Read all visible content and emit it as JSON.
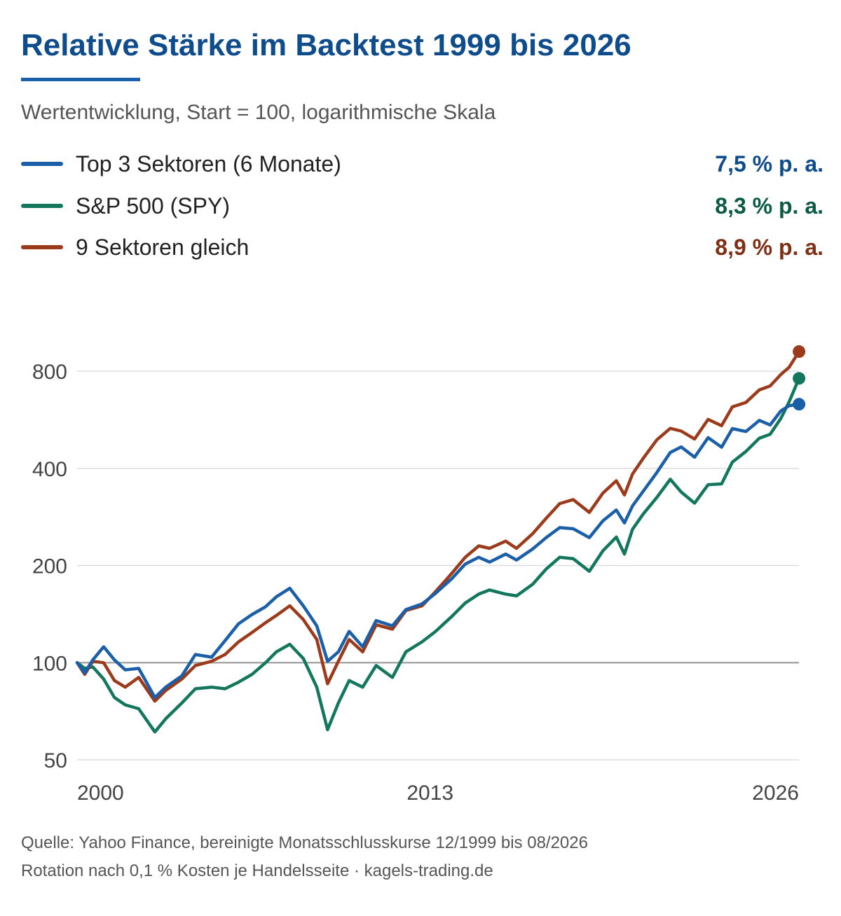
{
  "title": "Relative Stärke im Backtest 1999 bis 2026",
  "subtitle": "Wertentwicklung, Start = 100, logarithmische Skala",
  "legend": [
    {
      "label": "Top 3 Sektoren (6 Monate)",
      "value": "7,5 % p. a.",
      "color": "#1a5fa8",
      "value_color": "#0e4c8c"
    },
    {
      "label": "S&P 500 (SPY)",
      "value": "8,3 % p. a.",
      "color": "#13775e",
      "value_color": "#0b5a45"
    },
    {
      "label": "9 Sektoren gleich",
      "value": "8,9 % p. a.",
      "color": "#9c3b1b",
      "value_color": "#7f2f14"
    }
  ],
  "footer": {
    "line1": "Quelle: Yahoo Finance, bereinigte Monatsschlusskurse 12/1999 bis 08/2026",
    "line2": "Rotation nach 0,1 % Kosten je Handelsseite · kagels-trading.de"
  },
  "chart_data": {
    "type": "line",
    "yscale": "log",
    "xlim": [
      1999.917,
      2026.667
    ],
    "ylim": [
      50,
      1000
    ],
    "grid": true,
    "reference_line": 100,
    "x_ticks": [
      {
        "value": 2000,
        "label": "2000"
      },
      {
        "value": 2013,
        "label": "2013"
      },
      {
        "value": 2026,
        "label": "2026"
      }
    ],
    "y_ticks": [
      {
        "value": 50,
        "label": "50"
      },
      {
        "value": 100,
        "label": "100"
      },
      {
        "value": 200,
        "label": "200"
      },
      {
        "value": 400,
        "label": "400"
      },
      {
        "value": 800,
        "label": "800"
      }
    ],
    "series": [
      {
        "name": "Top 3 Sektoren (6 Monate)",
        "color": "#1a5fa8",
        "x": [
          1999.92,
          2000.2,
          2000.5,
          2000.9,
          2001.3,
          2001.7,
          2002.2,
          2002.8,
          2003.2,
          2003.8,
          2004.3,
          2004.9,
          2005.4,
          2005.9,
          2006.4,
          2006.9,
          2007.3,
          2007.8,
          2008.3,
          2008.8,
          2009.2,
          2009.6,
          2010.0,
          2010.5,
          2011.0,
          2011.6,
          2012.1,
          2012.7,
          2013.2,
          2013.8,
          2014.3,
          2014.8,
          2015.2,
          2015.8,
          2016.2,
          2016.8,
          2017.3,
          2017.8,
          2018.3,
          2018.9,
          2019.4,
          2019.9,
          2020.2,
          2020.5,
          2020.9,
          2021.4,
          2021.9,
          2022.3,
          2022.8,
          2023.3,
          2023.8,
          2024.2,
          2024.7,
          2025.2,
          2025.6,
          2026.0,
          2026.3,
          2026.67
        ],
        "y": [
          100,
          93,
          102,
          112,
          102,
          95,
          96,
          78,
          84,
          91,
          106,
          104,
          117,
          132,
          141,
          149,
          160,
          170,
          150,
          130,
          101,
          108,
          125,
          112,
          135,
          130,
          146,
          152,
          164,
          182,
          202,
          212,
          205,
          217,
          208,
          225,
          244,
          262,
          260,
          244,
          275,
          297,
          271,
          306,
          340,
          388,
          448,
          466,
          433,
          498,
          465,
          531,
          520,
          563,
          545,
          603,
          625,
          632
        ]
      },
      {
        "name": "S&P 500 (SPY)",
        "color": "#13775e",
        "x": [
          1999.92,
          2000.2,
          2000.5,
          2000.9,
          2001.3,
          2001.7,
          2002.2,
          2002.8,
          2003.2,
          2003.8,
          2004.3,
          2004.9,
          2005.4,
          2005.9,
          2006.4,
          2006.9,
          2007.3,
          2007.8,
          2008.3,
          2008.8,
          2009.2,
          2009.6,
          2010.0,
          2010.5,
          2011.0,
          2011.6,
          2012.1,
          2012.7,
          2013.2,
          2013.8,
          2014.3,
          2014.8,
          2015.2,
          2015.8,
          2016.2,
          2016.8,
          2017.3,
          2017.8,
          2018.3,
          2018.9,
          2019.4,
          2019.9,
          2020.2,
          2020.5,
          2020.9,
          2021.4,
          2021.9,
          2022.3,
          2022.8,
          2023.3,
          2023.8,
          2024.2,
          2024.7,
          2025.2,
          2025.6,
          2026.0,
          2026.3,
          2026.67
        ],
        "y": [
          100,
          96,
          97,
          89,
          78,
          74,
          72,
          61,
          67,
          75,
          83,
          84,
          83,
          87,
          92,
          100,
          108,
          114,
          103,
          84,
          62,
          75,
          88,
          84,
          98,
          90,
          108,
          116,
          125,
          139,
          153,
          163,
          168,
          163,
          161,
          175,
          195,
          212,
          210,
          192,
          222,
          245,
          217,
          259,
          289,
          325,
          370,
          338,
          312,
          356,
          358,
          418,
          451,
          496,
          510,
          572,
          642,
          760
        ]
      },
      {
        "name": "9 Sektoren gleich",
        "color": "#9c3b1b",
        "x": [
          1999.92,
          2000.2,
          2000.5,
          2000.9,
          2001.3,
          2001.7,
          2002.2,
          2002.8,
          2003.2,
          2003.8,
          2004.3,
          2004.9,
          2005.4,
          2005.9,
          2006.4,
          2006.9,
          2007.3,
          2007.8,
          2008.3,
          2008.8,
          2009.2,
          2009.6,
          2010.0,
          2010.5,
          2011.0,
          2011.6,
          2012.1,
          2012.7,
          2013.2,
          2013.8,
          2014.3,
          2014.8,
          2015.2,
          2015.8,
          2016.2,
          2016.8,
          2017.3,
          2017.8,
          2018.3,
          2018.9,
          2019.4,
          2019.9,
          2020.2,
          2020.5,
          2020.9,
          2021.4,
          2021.9,
          2022.3,
          2022.8,
          2023.3,
          2023.8,
          2024.2,
          2024.7,
          2025.2,
          2025.6,
          2026.0,
          2026.3,
          2026.67
        ],
        "y": [
          100,
          92,
          101,
          100,
          88,
          84,
          90,
          76,
          82,
          89,
          98,
          101,
          106,
          116,
          124,
          133,
          140,
          150,
          136,
          118,
          86,
          101,
          118,
          108,
          131,
          127,
          145,
          150,
          166,
          189,
          212,
          230,
          226,
          238,
          226,
          251,
          280,
          311,
          320,
          292,
          335,
          366,
          331,
          384,
          430,
          490,
          532,
          522,
          493,
          567,
          542,
          620,
          640,
          700,
          720,
          782,
          822,
          920
        ]
      }
    ]
  }
}
